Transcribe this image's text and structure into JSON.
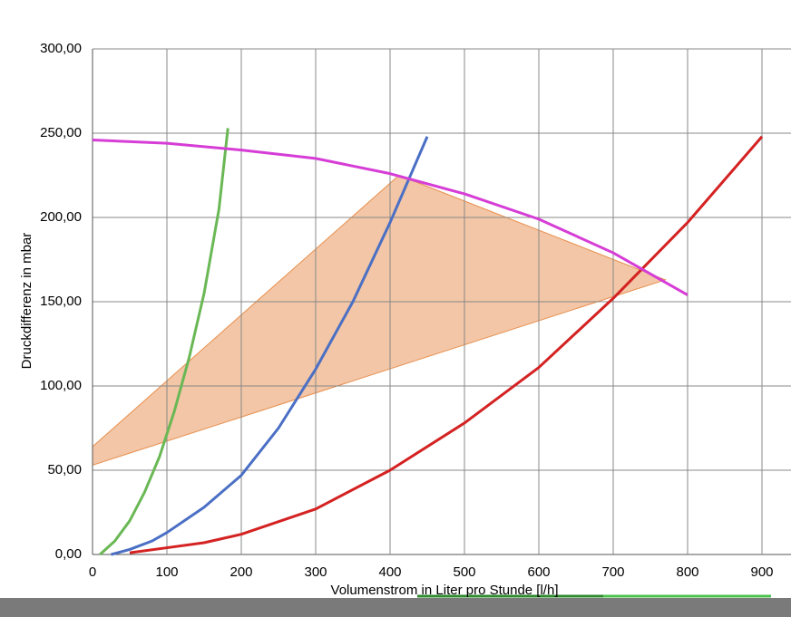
{
  "chart_data": {
    "type": "line",
    "y_label": "Druckdifferenz in mbar",
    "x_label": "Volumenstrom in Liter pro Stunde [l/h]",
    "xlim": [
      0,
      940
    ],
    "ylim": [
      0,
      300
    ],
    "xticks": [
      0,
      100,
      200,
      300,
      400,
      500,
      600,
      700,
      800,
      900
    ],
    "yticks": [
      {
        "value": 0,
        "label": "0,00"
      },
      {
        "value": 50,
        "label": "50,00"
      },
      {
        "value": 100,
        "label": "100,00"
      },
      {
        "value": 150,
        "label": "150,00"
      },
      {
        "value": 200,
        "label": "200,00"
      },
      {
        "value": 250,
        "label": "250,00"
      },
      {
        "value": 300,
        "label": "300,00"
      }
    ],
    "grid": true,
    "series": [
      {
        "type": "area",
        "color": "#f2c6a6",
        "x": [
          0,
          412,
          770,
          0
        ],
        "values": [
          64,
          225,
          163,
          53
        ]
      },
      {
        "type": "line",
        "color": "#6ab855",
        "x": [
          10,
          30,
          50,
          70,
          90,
          110,
          130,
          150,
          170,
          182
        ],
        "values": [
          0,
          8,
          20,
          37,
          58,
          85,
          117,
          155,
          205,
          253
        ]
      },
      {
        "type": "line",
        "color": "#4a6fc4",
        "x": [
          25,
          50,
          80,
          100,
          150,
          200,
          250,
          300,
          350,
          400,
          450
        ],
        "values": [
          0,
          3,
          8,
          13,
          28,
          47,
          75,
          110,
          150,
          197,
          248
        ]
      },
      {
        "type": "line",
        "color": "#d42222",
        "x": [
          50,
          100,
          150,
          200,
          300,
          400,
          500,
          600,
          700,
          800,
          900
        ],
        "values": [
          1,
          4,
          7,
          12,
          27,
          50,
          78,
          111,
          152,
          197,
          248
        ]
      },
      {
        "type": "line",
        "color": "#d63dd6",
        "x": [
          0,
          100,
          200,
          300,
          400,
          500,
          600,
          700,
          800
        ],
        "values": [
          246,
          244,
          240,
          235,
          226,
          214,
          199,
          179,
          154
        ]
      }
    ]
  }
}
